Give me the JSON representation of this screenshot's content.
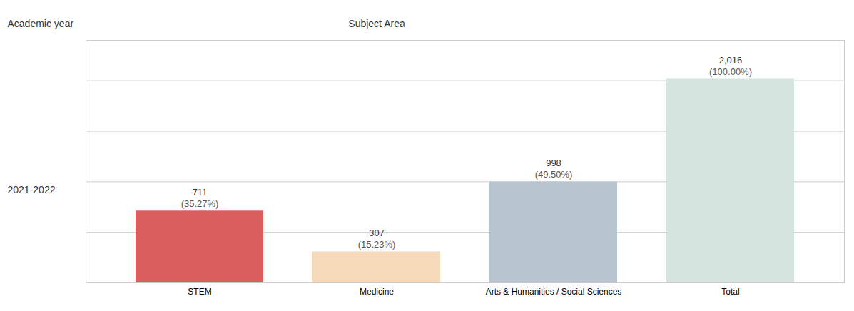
{
  "chart_data": {
    "type": "bar",
    "header_left": "Academic year",
    "header_center": "Subject Area",
    "row_label": "2021-2022",
    "categories": [
      "STEM",
      "Medicine",
      "Arts & Humanities / Social Sciences",
      "Total"
    ],
    "values": [
      711,
      307,
      998,
      2016
    ],
    "value_labels": [
      "711",
      "307",
      "998",
      "2,016"
    ],
    "percentage_labels": [
      "(35.27%)",
      "(15.23%)",
      "(49.50%)",
      "(100.00%)"
    ],
    "colors": [
      "#d95f5f",
      "#f5d9b8",
      "#b8c4d0",
      "#d6e4e0"
    ],
    "ylim": [
      0,
      2400
    ],
    "yticks": [
      500,
      1000,
      1500,
      2000
    ],
    "grid": true,
    "data_labels": true,
    "tick_labels": "x"
  }
}
